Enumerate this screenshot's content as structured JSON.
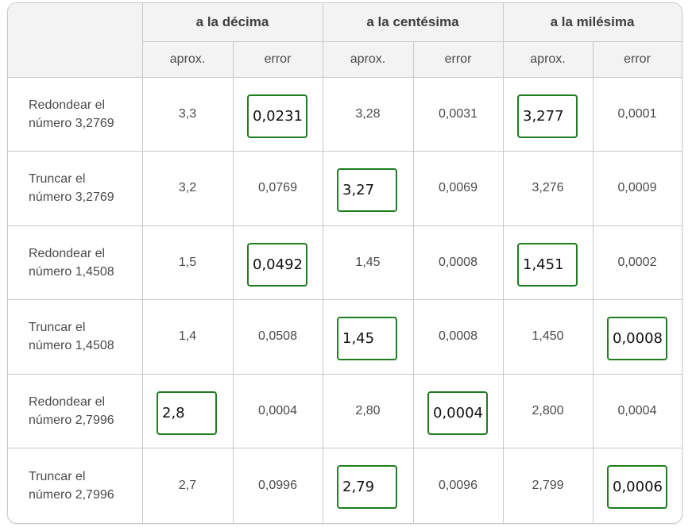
{
  "headers": {
    "groups": [
      "a la décima",
      "a la centésima",
      "a la milésima"
    ],
    "sub": [
      "aprox.",
      "error",
      "aprox.",
      "error",
      "aprox.",
      "error"
    ]
  },
  "rows": [
    {
      "label1": "Redondear el",
      "label2": "número 3,2769",
      "values": [
        "3,3",
        "0,0231",
        "3,28",
        "0,0031",
        "3,277",
        "0,0001"
      ]
    },
    {
      "label1": "Truncar el",
      "label2": "número 3,2769",
      "values": [
        "3,2",
        "0,0769",
        "3,27",
        "0,0069",
        "3,276",
        "0,0009"
      ]
    },
    {
      "label1": "Redondear el",
      "label2": "número 1,4508",
      "values": [
        "1,5",
        "0,0492",
        "1,45",
        "0,0008",
        "1,451",
        "0,0002"
      ]
    },
    {
      "label1": "Truncar el",
      "label2": "número 1,4508",
      "values": [
        "1,4",
        "0,0508",
        "1,45",
        "0,0008",
        "1,450",
        "0,0008"
      ]
    },
    {
      "label1": "Redondear el",
      "label2": "número 2,7996",
      "values": [
        "2,8",
        "0,0004",
        "2,80",
        "0,0004",
        "2,800",
        "0,0004"
      ]
    },
    {
      "label1": "Truncar el",
      "label2": "número 2,7996",
      "values": [
        "2,7",
        "0,0996",
        "2,79",
        "0,0096",
        "2,799",
        "0,0006"
      ]
    }
  ],
  "highlighted": [
    [
      0,
      1
    ],
    [
      0,
      4
    ],
    [
      1,
      2
    ],
    [
      2,
      1
    ],
    [
      2,
      4
    ],
    [
      3,
      2
    ],
    [
      3,
      5
    ],
    [
      4,
      0
    ],
    [
      4,
      3
    ],
    [
      5,
      2
    ],
    [
      5,
      5
    ]
  ],
  "colors": {
    "highlight_border": "#1f7d1f",
    "grid": "#c9c9c9",
    "header_bg": "#f3f3f3"
  }
}
